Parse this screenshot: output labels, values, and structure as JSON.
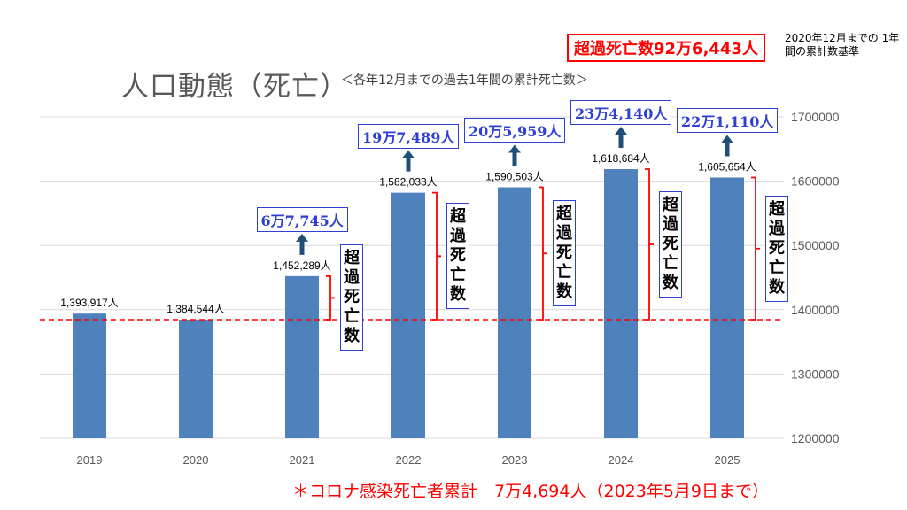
{
  "title": "人口動態（死亡）",
  "subtitle": "＜各年12月までの過去1年間の累計死亡数＞",
  "total_excess_label": "超過死亡数92万6,443人",
  "note": "2020年12月までの 1年間の累計数基準",
  "footnote": "＊コロナ感染死亡者累計　7万4,694人（2023年5月9日まで）",
  "colors": {
    "bar": "#4f81bd",
    "baseline": "#ff0000",
    "excess_text": "#2e3fd6",
    "bracket": "#ff0000",
    "arrow": "#1f4e79"
  },
  "chart_data": {
    "type": "bar",
    "categories": [
      "2019",
      "2020",
      "2021",
      "2022",
      "2023",
      "2024",
      "2025"
    ],
    "values": [
      1393917,
      1384544,
      1452289,
      1582033,
      1590503,
      1618684,
      1605654
    ],
    "data_labels": [
      "1,393,917人",
      "1,384,544人",
      "1,452,289人",
      "1,582,033人",
      "1,590,503人",
      "1,618,684人",
      "1,605,654人"
    ],
    "ylim": [
      1200000,
      1700000
    ],
    "yticks": [
      "1200000",
      "1300000",
      "1400000",
      "1500000",
      "1600000",
      "1700000"
    ],
    "grid": true,
    "baseline_value": 1384544,
    "excess": [
      {
        "category": "2021",
        "label": "6万7,745人",
        "vertical_label": "超過死亡数"
      },
      {
        "category": "2022",
        "label": "19万7,489人",
        "vertical_label": "超過死亡数"
      },
      {
        "category": "2023",
        "label": "20万5,959人",
        "vertical_label": "超過死亡数"
      },
      {
        "category": "2024",
        "label": "23万4,140人",
        "vertical_label": "超過死亡数"
      },
      {
        "category": "2025",
        "label": "22万1,110人",
        "vertical_label": "超過死亡数"
      }
    ]
  }
}
